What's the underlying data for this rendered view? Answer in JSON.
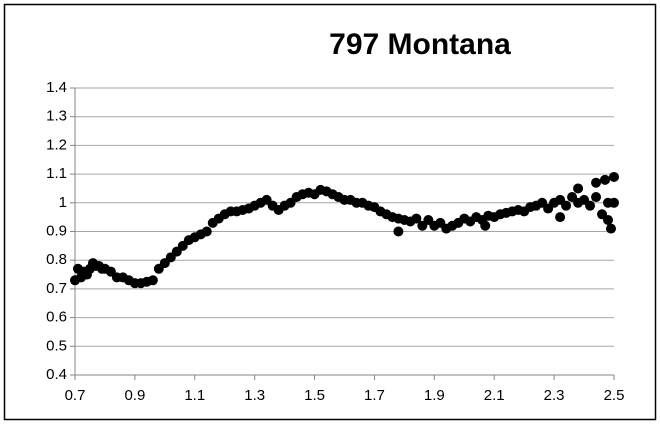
{
  "chart_data": {
    "type": "scatter",
    "title": "797 Montana",
    "series": [
      {
        "color": "#000000",
        "x": [
          0.7,
          0.71,
          0.72,
          0.73,
          0.74,
          0.75,
          0.76,
          0.77,
          0.78,
          0.79,
          0.8,
          0.82,
          0.84,
          0.86,
          0.88,
          0.9,
          0.92,
          0.94,
          0.96,
          0.98,
          1.0,
          1.02,
          1.04,
          1.06,
          1.08,
          1.1,
          1.12,
          1.14,
          1.16,
          1.18,
          1.2,
          1.22,
          1.24,
          1.26,
          1.28,
          1.3,
          1.32,
          1.34,
          1.36,
          1.38,
          1.4,
          1.42,
          1.44,
          1.46,
          1.48,
          1.5,
          1.52,
          1.54,
          1.56,
          1.58,
          1.6,
          1.62,
          1.64,
          1.66,
          1.68,
          1.7,
          1.72,
          1.74,
          1.76,
          1.78,
          1.8,
          1.82,
          1.84,
          1.86,
          1.88,
          1.9,
          1.92,
          1.94,
          1.96,
          1.98,
          2.0,
          2.02,
          2.04,
          2.06,
          2.08,
          2.1,
          2.12,
          2.14,
          2.16,
          2.18,
          2.2,
          2.22,
          2.24,
          2.26,
          2.28,
          2.3,
          2.32,
          2.34,
          2.36,
          2.38,
          2.4,
          2.42,
          2.44,
          2.46,
          2.48,
          2.5,
          1.78,
          2.38,
          2.44,
          2.47,
          2.49,
          2.5,
          2.48,
          2.32,
          2.07
        ],
        "values": [
          0.73,
          0.77,
          0.74,
          0.76,
          0.75,
          0.77,
          0.79,
          0.78,
          0.78,
          0.77,
          0.77,
          0.76,
          0.74,
          0.74,
          0.73,
          0.72,
          0.72,
          0.725,
          0.73,
          0.77,
          0.79,
          0.81,
          0.83,
          0.85,
          0.87,
          0.88,
          0.89,
          0.9,
          0.93,
          0.945,
          0.96,
          0.97,
          0.97,
          0.975,
          0.98,
          0.99,
          1.0,
          1.01,
          0.99,
          0.975,
          0.99,
          1.0,
          1.02,
          1.03,
          1.035,
          1.03,
          1.045,
          1.04,
          1.03,
          1.02,
          1.01,
          1.01,
          1.0,
          1.0,
          0.99,
          0.985,
          0.97,
          0.96,
          0.95,
          0.945,
          0.94,
          0.935,
          0.945,
          0.92,
          0.94,
          0.92,
          0.93,
          0.91,
          0.92,
          0.93,
          0.945,
          0.935,
          0.95,
          0.94,
          0.955,
          0.95,
          0.96,
          0.965,
          0.97,
          0.975,
          0.97,
          0.985,
          0.99,
          1.0,
          0.98,
          1.0,
          1.01,
          0.99,
          1.02,
          1.0,
          1.01,
          0.99,
          1.02,
          0.96,
          1.0,
          1.0,
          0.9,
          1.05,
          1.07,
          1.08,
          0.91,
          1.09,
          0.94,
          0.95,
          0.92
        ]
      }
    ],
    "xlim": [
      0.7,
      2.5
    ],
    "xticks": [
      0.7,
      0.9,
      1.1,
      1.3,
      1.5,
      1.7,
      1.9,
      2.1,
      2.3,
      2.5
    ],
    "ylim": [
      0.4,
      1.4
    ],
    "yticks": [
      0.4,
      0.5,
      0.6,
      0.7,
      0.8,
      0.9,
      1,
      1.1,
      1.2,
      1.3,
      1.4
    ],
    "grid": true
  }
}
